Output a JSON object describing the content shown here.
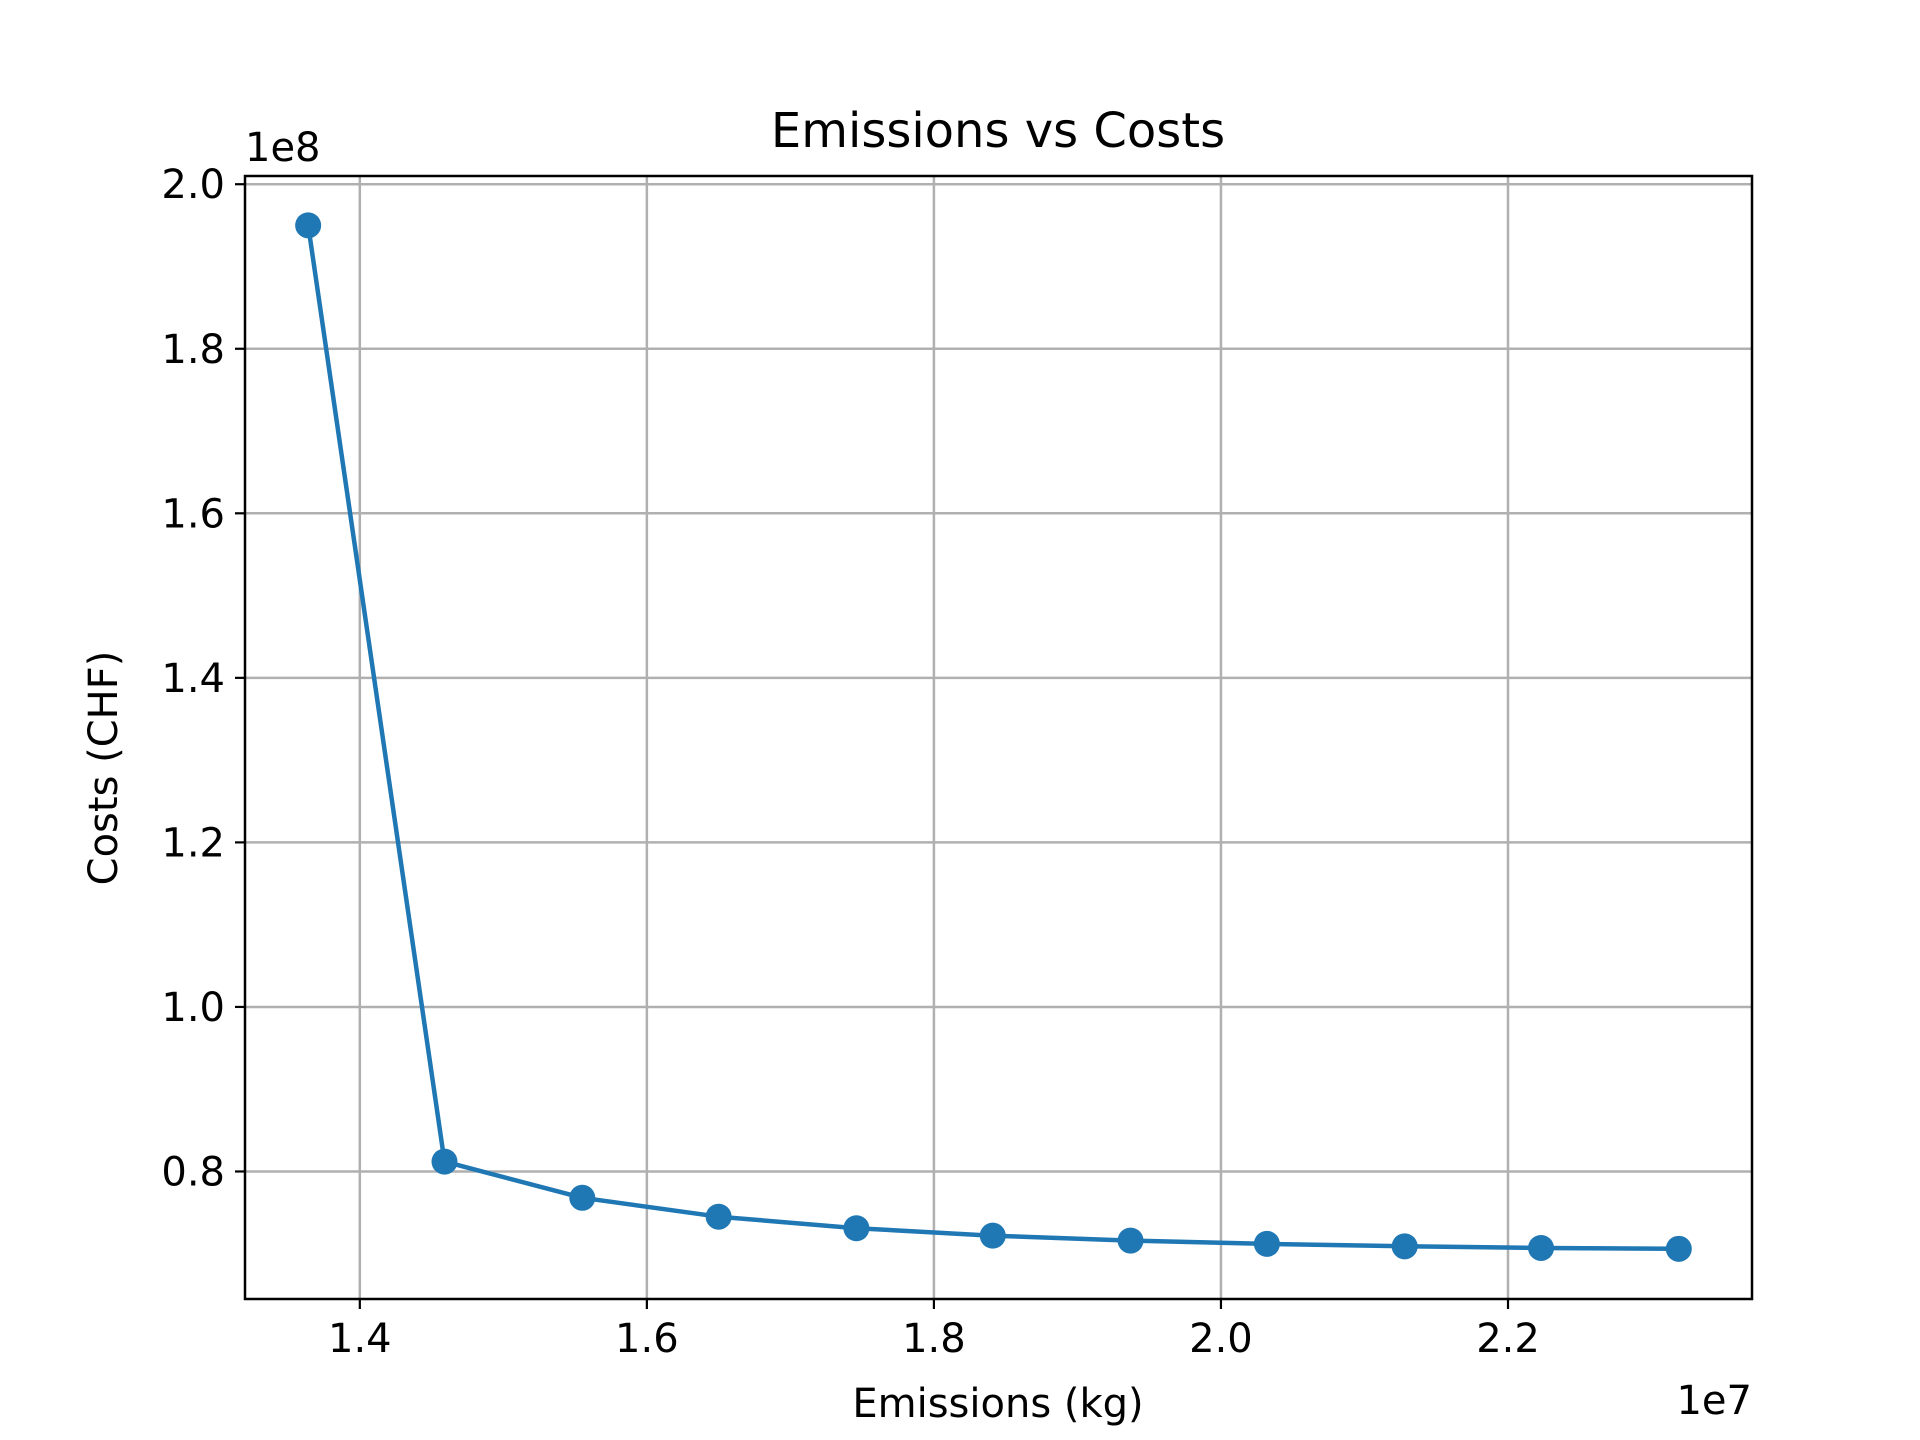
{
  "chart_data": {
    "type": "line",
    "title": "Emissions vs Costs",
    "xlabel": "Emissions (kg)",
    "ylabel": "Costs (CHF)",
    "x_offset_label": "1e7",
    "y_offset_label": "1e8",
    "x_scale": 10000000,
    "y_scale": 100000000,
    "xlim": [
      13.2,
      23.7
    ],
    "ylim": [
      0.645,
      2.01
    ],
    "xticks": [
      1.4,
      1.6,
      1.8,
      2.0,
      2.2
    ],
    "xtick_labels": [
      "1.4",
      "1.6",
      "1.8",
      "2.0",
      "2.2"
    ],
    "yticks": [
      0.8,
      1.0,
      1.2,
      1.4,
      1.6,
      1.8,
      2.0
    ],
    "ytick_labels": [
      "0.8",
      "1.0",
      "1.2",
      "1.4",
      "1.6",
      "1.8",
      "2.0"
    ],
    "grid": true,
    "series": [
      {
        "color": "#1f77b4",
        "marker": "circle",
        "x": [
          13640000,
          14590000,
          15550000,
          16500000,
          17460000,
          18410000,
          19370000,
          20320000,
          21280000,
          22230000,
          23190000
        ],
        "y": [
          195000000,
          81200000,
          76800000,
          74500000,
          73100000,
          72200000,
          71600000,
          71200000,
          70900000,
          70700000,
          70600000
        ]
      }
    ]
  }
}
